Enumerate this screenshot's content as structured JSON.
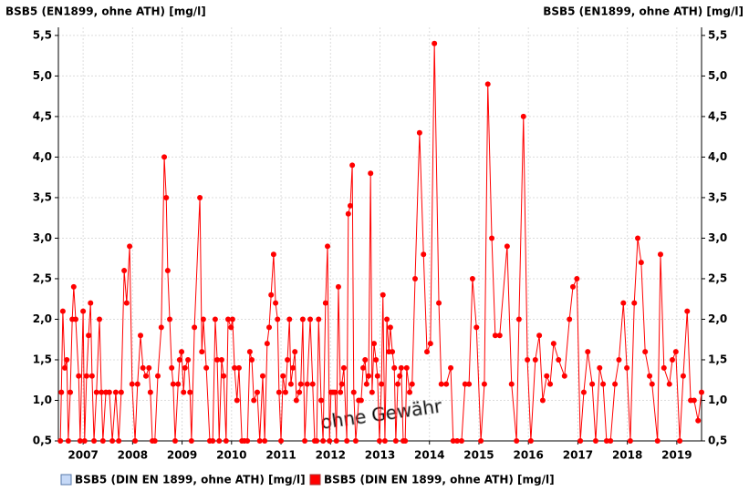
{
  "chart_data": {
    "type": "line",
    "title": "BSB5 (EN1899, ohne ATH) [mg/l]",
    "title_right": "BSB5 (EN1899, ohne ATH) [mg/l]",
    "watermark": "ohne Gewähr",
    "xlim": [
      2007,
      2020
    ],
    "xticks": [
      {
        "value": 2007.5,
        "label": "2007"
      },
      {
        "value": 2008.5,
        "label": "2008"
      },
      {
        "value": 2009.5,
        "label": "2009"
      },
      {
        "value": 2010.5,
        "label": "2010"
      },
      {
        "value": 2011.5,
        "label": "2011"
      },
      {
        "value": 2012.5,
        "label": "2012"
      },
      {
        "value": 2013.5,
        "label": "2013"
      },
      {
        "value": 2014.5,
        "label": "2014"
      },
      {
        "value": 2015.5,
        "label": "2015"
      },
      {
        "value": 2016.5,
        "label": "2016"
      },
      {
        "value": 2017.5,
        "label": "2017"
      },
      {
        "value": 2018.5,
        "label": "2018"
      },
      {
        "value": 2019.5,
        "label": "2019"
      }
    ],
    "ylim": [
      0.5,
      5.6
    ],
    "yticks": [
      {
        "value": 0.5,
        "label": "0,5"
      },
      {
        "value": 1.0,
        "label": "1,0"
      },
      {
        "value": 1.5,
        "label": "1,5"
      },
      {
        "value": 2.0,
        "label": "2,0"
      },
      {
        "value": 2.5,
        "label": "2,5"
      },
      {
        "value": 3.0,
        "label": "3,0"
      },
      {
        "value": 3.5,
        "label": "3,5"
      },
      {
        "value": 4.0,
        "label": "4,0"
      },
      {
        "value": 4.5,
        "label": "4,5"
      },
      {
        "value": 5.0,
        "label": "5,0"
      },
      {
        "value": 5.5,
        "label": "5,5"
      }
    ],
    "grid": true,
    "legend": "bottom-left",
    "series": [
      {
        "name": "BSB5 (DIN EN 1899, ohne ATH) [mg/l]",
        "color": "#c6d9f7",
        "x": [],
        "values": []
      },
      {
        "name": "BSB5 (DIN EN 1899, ohne ATH) [mg/l]",
        "color": "#ff0000",
        "x": [
          2007.04,
          2007.06,
          2007.09,
          2007.13,
          2007.17,
          2007.2,
          2007.24,
          2007.28,
          2007.31,
          2007.35,
          2007.41,
          2007.44,
          2007.5,
          2007.53,
          2007.57,
          2007.61,
          2007.65,
          2007.68,
          2007.72,
          2007.77,
          2007.83,
          2007.87,
          2007.9,
          2007.96,
          2008.03,
          2008.09,
          2008.16,
          2008.22,
          2008.27,
          2008.33,
          2008.38,
          2008.44,
          2008.49,
          2008.55,
          2008.6,
          2008.66,
          2008.71,
          2008.77,
          2008.83,
          2008.86,
          2008.9,
          2008.95,
          2009.01,
          2009.08,
          2009.14,
          2009.18,
          2009.21,
          2009.25,
          2009.29,
          2009.32,
          2009.36,
          2009.42,
          2009.45,
          2009.49,
          2009.53,
          2009.56,
          2009.62,
          2009.66,
          2009.69,
          2009.75,
          2009.86,
          2009.9,
          2009.93,
          2009.99,
          2010.06,
          2010.12,
          2010.17,
          2010.21,
          2010.25,
          2010.3,
          2010.34,
          2010.39,
          2010.43,
          2010.49,
          2010.52,
          2010.56,
          2010.61,
          2010.65,
          2010.71,
          2010.76,
          2010.82,
          2010.87,
          2010.91,
          2010.95,
          2011.02,
          2011.07,
          2011.13,
          2011.17,
          2011.22,
          2011.26,
          2011.3,
          2011.35,
          2011.39,
          2011.43,
          2011.46,
          2011.5,
          2011.54,
          2011.59,
          2011.63,
          2011.67,
          2011.7,
          2011.74,
          2011.78,
          2011.81,
          2011.87,
          2011.9,
          2011.94,
          2011.98,
          2012.03,
          2012.09,
          2012.14,
          2012.18,
          2012.22,
          2012.26,
          2012.31,
          2012.35,
          2012.4,
          2012.44,
          2012.48,
          2012.51,
          2012.55,
          2012.59,
          2012.62,
          2012.66,
          2012.7,
          2012.73,
          2012.77,
          2012.83,
          2012.86,
          2012.9,
          2012.94,
          2012.97,
          2013.01,
          2013.07,
          2013.12,
          2013.16,
          2013.2,
          2013.23,
          2013.27,
          2013.31,
          2013.34,
          2013.38,
          2013.42,
          2013.45,
          2013.49,
          2013.53,
          2013.56,
          2013.6,
          2013.64,
          2013.68,
          2013.71,
          2013.75,
          2013.79,
          2013.82,
          2013.86,
          2013.9,
          2013.93,
          2013.97,
          2014.01,
          2014.04,
          2014.1,
          2014.15,
          2014.21,
          2014.3,
          2014.38,
          2014.45,
          2014.52,
          2014.6,
          2014.69,
          2014.74,
          2014.84,
          2014.93,
          2014.98,
          2015.06,
          2015.15,
          2015.22,
          2015.3,
          2015.37,
          2015.45,
          2015.54,
          2015.61,
          2015.68,
          2015.76,
          2015.83,
          2015.92,
          2016.07,
          2016.16,
          2016.26,
          2016.31,
          2016.4,
          2016.48,
          2016.55,
          2016.64,
          2016.72,
          2016.79,
          2016.87,
          2016.94,
          2017.01,
          2017.11,
          2017.23,
          2017.33,
          2017.4,
          2017.48,
          2017.55,
          2017.62,
          2017.7,
          2017.79,
          2017.86,
          2017.94,
          2018.01,
          2018.08,
          2018.16,
          2018.25,
          2018.33,
          2018.42,
          2018.49,
          2018.56,
          2018.64,
          2018.71,
          2018.78,
          2018.86,
          2018.95,
          2019.0,
          2019.11,
          2019.17,
          2019.24,
          2019.35,
          2019.41,
          2019.48,
          2019.56,
          2019.63,
          2019.71,
          2019.78,
          2019.85,
          2019.93,
          2020.0
        ],
        "values": [
          0.5,
          1.1,
          2.1,
          1.4,
          1.5,
          0.5,
          1.1,
          2.0,
          2.4,
          2.0,
          1.3,
          0.5,
          2.1,
          0.5,
          1.3,
          1.8,
          2.2,
          1.3,
          0.5,
          1.1,
          2.0,
          1.1,
          0.5,
          1.1,
          1.1,
          0.5,
          1.1,
          0.5,
          1.1,
          2.6,
          2.2,
          2.9,
          1.2,
          0.5,
          1.2,
          1.8,
          1.4,
          1.3,
          1.4,
          1.1,
          0.5,
          0.5,
          1.3,
          1.9,
          4.0,
          3.5,
          2.6,
          2.0,
          1.4,
          1.2,
          0.5,
          1.2,
          1.5,
          1.6,
          1.1,
          1.4,
          1.5,
          1.1,
          0.5,
          1.9,
          3.5,
          1.6,
          2.0,
          1.4,
          0.5,
          0.5,
          2.0,
          1.5,
          0.5,
          1.5,
          1.3,
          0.5,
          2.0,
          1.9,
          2.0,
          1.4,
          1.0,
          1.4,
          0.5,
          0.5,
          0.5,
          1.6,
          1.5,
          1.0,
          1.1,
          0.5,
          1.3,
          0.5,
          1.7,
          1.9,
          2.3,
          2.8,
          2.2,
          2.0,
          1.1,
          0.5,
          1.3,
          1.1,
          1.5,
          2.0,
          1.2,
          1.4,
          1.6,
          1.0,
          1.1,
          1.2,
          2.0,
          0.5,
          1.2,
          2.0,
          1.2,
          0.5,
          0.5,
          2.0,
          1.0,
          0.5,
          2.2,
          2.9,
          0.5,
          1.1,
          1.1,
          1.1,
          0.5,
          2.4,
          1.1,
          1.2,
          1.4,
          0.5,
          3.3,
          3.4,
          3.9,
          1.1,
          0.5,
          1.0,
          1.0,
          1.4,
          1.5,
          1.2,
          1.3,
          3.8,
          1.1,
          1.7,
          1.5,
          1.3,
          0.5,
          1.2,
          2.3,
          0.5,
          2.0,
          1.6,
          1.9,
          1.6,
          1.4,
          0.5,
          1.2,
          1.3,
          1.4,
          0.5,
          0.5,
          1.4,
          1.1,
          1.2,
          2.5,
          4.3,
          2.8,
          1.6,
          1.7,
          5.4,
          2.2,
          1.2,
          1.2,
          1.4,
          0.5,
          0.5,
          0.5,
          1.2,
          1.2,
          2.5,
          1.9,
          0.5,
          1.2,
          4.9,
          3.0,
          1.8,
          1.8,
          2.9,
          1.2,
          0.5,
          2.0,
          4.5,
          1.5,
          0.5,
          1.5,
          1.8,
          1.0,
          1.3,
          1.2,
          1.7,
          1.5,
          1.3,
          2.0,
          2.4,
          2.5,
          0.5,
          1.1,
          1.6,
          1.2,
          0.5,
          1.4,
          1.2,
          0.5,
          0.5,
          1.2,
          1.5,
          2.2,
          1.4,
          0.5,
          2.2,
          3.0,
          2.7,
          1.6,
          1.3,
          1.2,
          0.5,
          2.8,
          1.4,
          1.2,
          1.5,
          1.6,
          0.5,
          1.3,
          2.1,
          1.0,
          1.0,
          0.75,
          1.1
        ]
      }
    ]
  }
}
